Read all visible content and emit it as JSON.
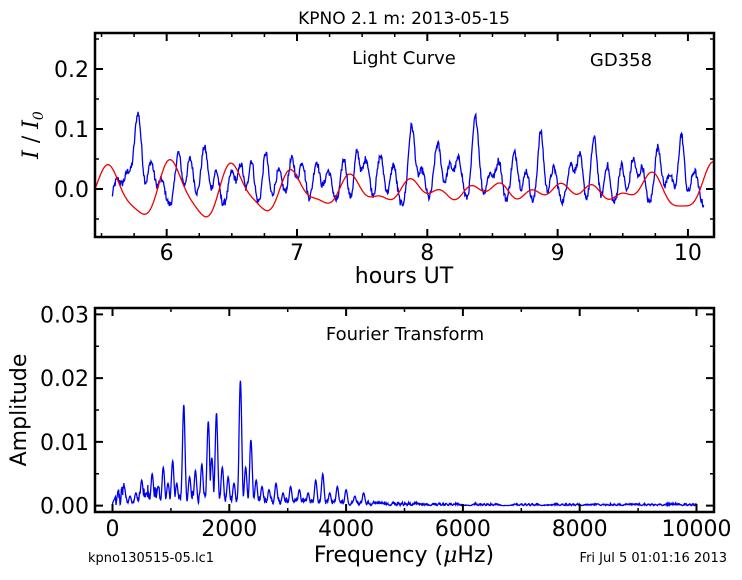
{
  "figure": {
    "title": "KPNO 2.1 m:  2013-05-15",
    "footer_left": "kpno130515-05.lc1",
    "footer_right": "Fri Jul  5 01:01:16 2013"
  },
  "colors": {
    "observed": "#0000ee",
    "model": "#ee0000",
    "axes": "#000000"
  },
  "chart_data": [
    {
      "type": "line",
      "annotation_left": "Light Curve",
      "annotation_right": "GD358",
      "xlabel": "hours UT",
      "ylabel_base": "I",
      "ylabel_sub": "0",
      "xlim": [
        5.45,
        10.2
      ],
      "ylim": [
        -0.08,
        0.26
      ],
      "x_ticks": [
        6,
        7,
        8,
        9,
        10
      ],
      "x_tick_labels": [
        "6",
        "7",
        "8",
        "9",
        "10"
      ],
      "y_ticks": [
        0.0,
        0.1,
        0.2
      ],
      "y_tick_labels": [
        "0.0",
        "0.1",
        "0.2"
      ],
      "grid": false,
      "series": [
        {
          "color": "#0000ee",
          "x_start": 5.58,
          "x_end": 10.12,
          "baseline": -0.03,
          "peaks": [
            [
              5.62,
              0.015
            ],
            [
              5.7,
              0.025
            ],
            [
              5.78,
              0.125
            ],
            [
              5.88,
              0.045
            ],
            [
              5.96,
              0.015
            ],
            [
              6.09,
              0.06
            ],
            [
              6.18,
              0.05
            ],
            [
              6.29,
              0.07
            ],
            [
              6.38,
              0.03
            ],
            [
              6.5,
              0.028
            ],
            [
              6.57,
              0.04
            ],
            [
              6.65,
              0.048
            ],
            [
              6.76,
              0.06
            ],
            [
              6.86,
              0.03
            ],
            [
              6.96,
              0.05
            ],
            [
              7.04,
              0.045
            ],
            [
              7.15,
              0.045
            ],
            [
              7.24,
              0.03
            ],
            [
              7.36,
              0.05
            ],
            [
              7.46,
              0.06
            ],
            [
              7.53,
              0.05
            ],
            [
              7.64,
              0.055
            ],
            [
              7.74,
              0.04
            ],
            [
              7.88,
              0.105
            ],
            [
              7.96,
              0.03
            ],
            [
              8.08,
              0.075
            ],
            [
              8.17,
              0.035
            ],
            [
              8.24,
              0.05
            ],
            [
              8.37,
              0.12
            ],
            [
              8.48,
              0.025
            ],
            [
              8.55,
              0.045
            ],
            [
              8.67,
              0.06
            ],
            [
              8.76,
              0.03
            ],
            [
              8.87,
              0.095
            ],
            [
              8.97,
              0.035
            ],
            [
              9.1,
              0.04
            ],
            [
              9.17,
              0.055
            ],
            [
              9.28,
              0.085
            ],
            [
              9.38,
              0.04
            ],
            [
              9.49,
              0.04
            ],
            [
              9.58,
              0.05
            ],
            [
              9.65,
              0.035
            ],
            [
              9.77,
              0.07
            ],
            [
              9.86,
              0.025
            ],
            [
              9.95,
              0.09
            ],
            [
              10.05,
              0.03
            ]
          ]
        },
        {
          "color": "#ee0000",
          "x_start": 5.45,
          "x_end": 10.2,
          "components": [
            {
              "freq": 2.15,
              "amp": 0.02,
              "phase": 0.3
            },
            {
              "freq": 1.95,
              "amp": 0.014,
              "phase": 1.7
            },
            {
              "freq": 2.4,
              "amp": 0.009,
              "phase": 2.6
            },
            {
              "freq": 1.7,
              "amp": 0.006,
              "phase": 4.1
            }
          ],
          "offset": -0.003
        }
      ]
    },
    {
      "type": "line",
      "annotation": "Fourier Transform",
      "xlabel_pre": "Frequency (",
      "xlabel_mu": "μ",
      "xlabel_post": "Hz)",
      "ylabel": "Amplitude",
      "xlim": [
        -300,
        10300
      ],
      "ylim": [
        -0.001,
        0.031
      ],
      "x_ticks": [
        0,
        2000,
        4000,
        6000,
        8000,
        10000
      ],
      "x_tick_labels": [
        "0",
        "2000",
        "4000",
        "6000",
        "8000",
        "10000"
      ],
      "y_ticks": [
        0.0,
        0.01,
        0.02,
        0.03
      ],
      "y_tick_labels": [
        "0.00",
        "0.01",
        "0.02",
        "0.03"
      ],
      "grid": false,
      "series": [
        {
          "color": "#0000ee",
          "x_start": 0,
          "x_end": 10000,
          "major_peaks": [
            [
              100,
              0.0005
            ],
            [
              200,
              0.003
            ],
            [
              300,
              0.0015
            ],
            [
              400,
              0.002
            ],
            [
              500,
              0.004
            ],
            [
              580,
              0.002
            ],
            [
              680,
              0.005
            ],
            [
              780,
              0.003
            ],
            [
              870,
              0.006
            ],
            [
              950,
              0.0035
            ],
            [
              1030,
              0.007
            ],
            [
              1100,
              0.0035
            ],
            [
              1220,
              0.0158
            ],
            [
              1320,
              0.0045
            ],
            [
              1420,
              0.0055
            ],
            [
              1530,
              0.0065
            ],
            [
              1640,
              0.0132
            ],
            [
              1700,
              0.0075
            ],
            [
              1780,
              0.0145
            ],
            [
              1880,
              0.006
            ],
            [
              1980,
              0.0045
            ],
            [
              2080,
              0.0035
            ],
            [
              2190,
              0.0196
            ],
            [
              2280,
              0.006
            ],
            [
              2370,
              0.0103
            ],
            [
              2460,
              0.004
            ],
            [
              2560,
              0.003
            ],
            [
              2680,
              0.0025
            ],
            [
              2800,
              0.0035
            ],
            [
              2920,
              0.002
            ],
            [
              3050,
              0.003
            ],
            [
              3200,
              0.0025
            ],
            [
              3350,
              0.002
            ],
            [
              3480,
              0.004
            ],
            [
              3600,
              0.005
            ],
            [
              3720,
              0.002
            ],
            [
              3850,
              0.003
            ],
            [
              4000,
              0.0025
            ],
            [
              4150,
              0.0015
            ],
            [
              4300,
              0.002
            ]
          ],
          "noise_level": 0.0015,
          "noise_decay": 0.00025
        }
      ]
    }
  ]
}
